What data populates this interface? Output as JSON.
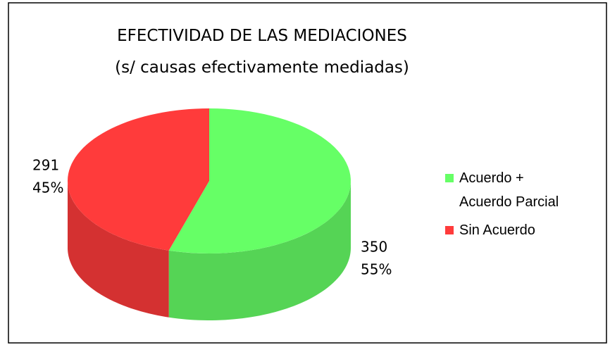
{
  "chart_data": {
    "type": "pie",
    "title": "EFECTIVIDAD DE LAS MEDIACIONES",
    "subtitle": "(s/ causas efectivamente mediadas)",
    "categories": [
      "Acuerdo + Acuerdo Parcial",
      "Sin Acuerdo"
    ],
    "values": [
      350,
      291
    ],
    "percent": [
      55,
      45
    ],
    "percent_labels": [
      "55%",
      "45%"
    ],
    "colors": [
      "#66ff66",
      "#ff3b3b"
    ],
    "legend": "right"
  }
}
